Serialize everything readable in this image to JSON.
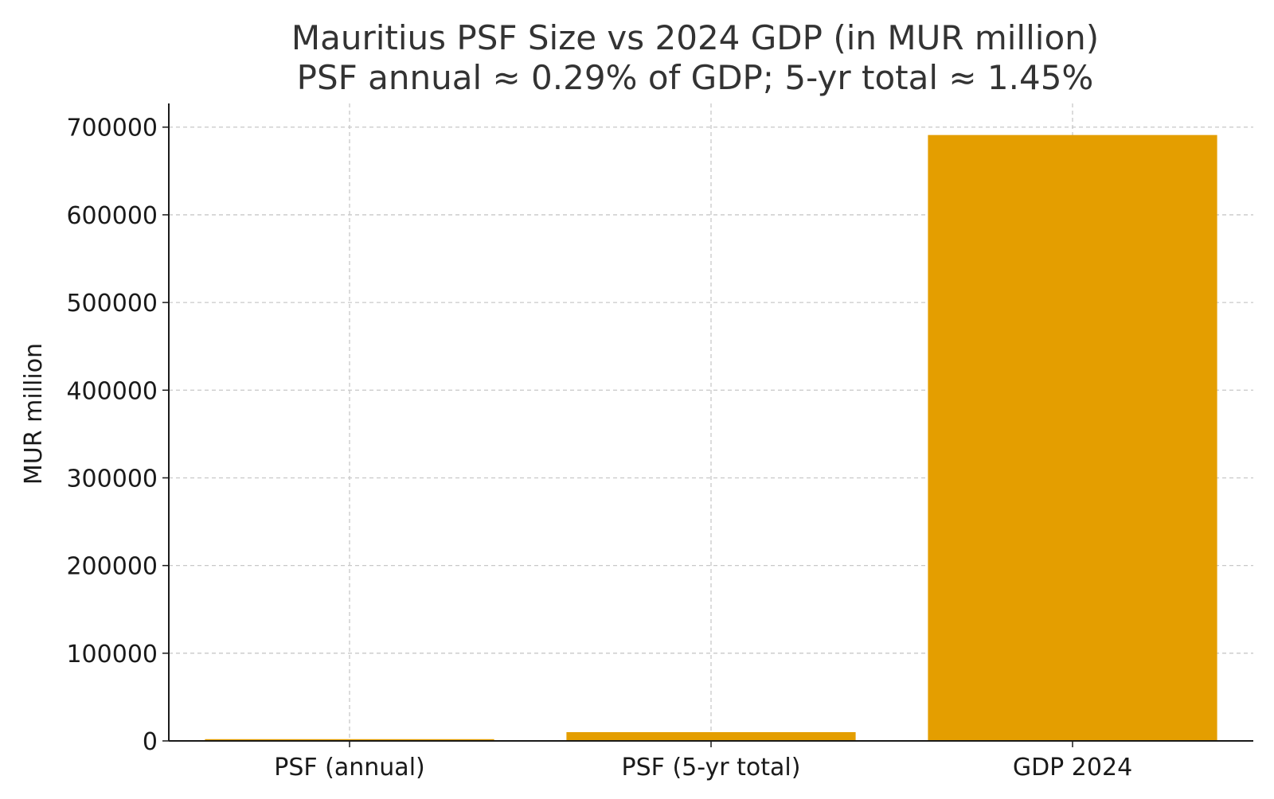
{
  "chart_data": {
    "type": "bar",
    "title_lines": [
      "Mauritius PSF Size vs 2024 GDP (in MUR million)",
      "PSF annual ≈ 0.29% of GDP; 5-yr total ≈ 1.45%"
    ],
    "xlabel": "",
    "ylabel": "MUR million",
    "categories": [
      "PSF (annual)",
      "PSF (5-yr total)",
      "GDP 2024"
    ],
    "values": [
      2000,
      10000,
      691000
    ],
    "ylim": [
      0,
      727000
    ],
    "yticks": [
      0,
      100000,
      200000,
      300000,
      400000,
      500000,
      600000,
      700000
    ],
    "grid": true,
    "legend": "none",
    "colors": {
      "bar": "#e49e00",
      "grid": "#c8c8c8",
      "axis": "#1a1a1a",
      "title": "#333333",
      "text": "#1a1a1a"
    }
  }
}
